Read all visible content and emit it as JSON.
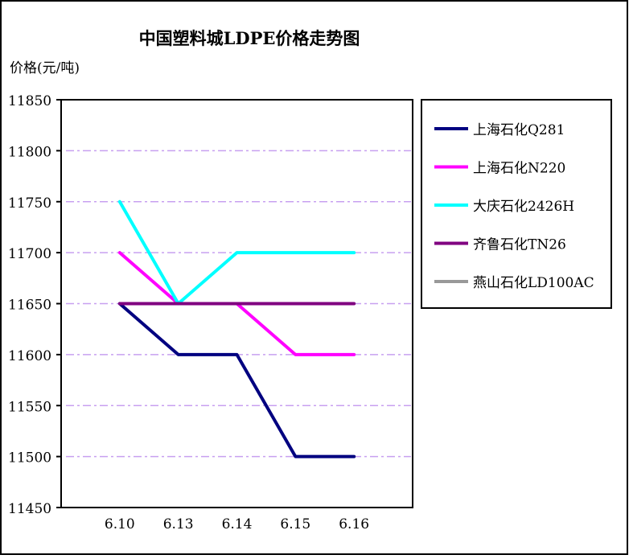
{
  "chart_data": {
    "type": "line",
    "title": "中国塑料城LDPE价格走势图",
    "ylabel": "价格(元/吨)",
    "xlabel": "",
    "categories": [
      "6.10",
      "6.13",
      "6.14",
      "6.15",
      "6.16"
    ],
    "ylim": [
      11450,
      11850
    ],
    "yticks": [
      11450,
      11500,
      11550,
      11600,
      11650,
      11700,
      11750,
      11800,
      11850
    ],
    "grid": true,
    "legend": "right",
    "series": [
      {
        "name": "上海石化Q281",
        "color": "#000080",
        "values": [
          11650,
          11600,
          11600,
          11500,
          11500
        ]
      },
      {
        "name": "上海石化N220",
        "color": "#ff00ff",
        "values": [
          11700,
          11650,
          11650,
          11600,
          11600
        ]
      },
      {
        "name": "大庆石化2426H",
        "color": "#00ffff",
        "values": [
          11750,
          11650,
          11700,
          11700,
          11700
        ]
      },
      {
        "name": "齐鲁石化TN26",
        "color": "#800080",
        "values": [
          11650,
          11650,
          11650,
          11650,
          11650
        ]
      },
      {
        "name": "燕山石化LD100AC",
        "color": "#999999",
        "values": [
          null,
          null,
          null,
          null,
          null
        ]
      }
    ],
    "grid_color": "#c8a0f0"
  }
}
